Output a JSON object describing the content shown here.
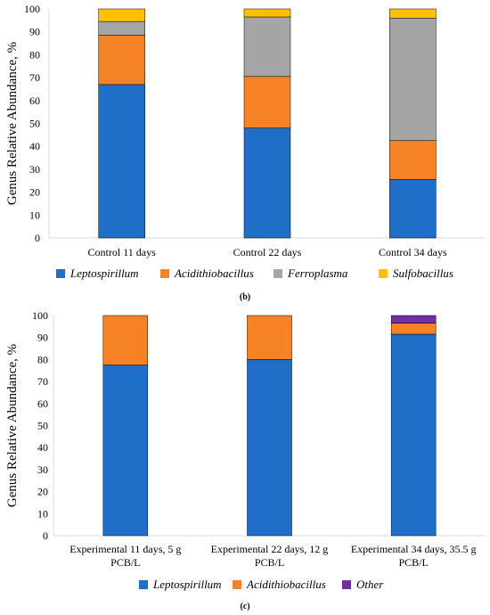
{
  "chart_data": [
    {
      "type": "bar",
      "stacked": true,
      "panel_label": "(b)",
      "ylabel": "Genus Relative Abundance, %",
      "ylim": [
        0,
        100
      ],
      "yticks": [
        0,
        10,
        20,
        30,
        40,
        50,
        60,
        70,
        80,
        90,
        100
      ],
      "grid": false,
      "legend_position": "bottom",
      "categories": [
        [
          "Control 11 days"
        ],
        [
          "Control 22 days"
        ],
        [
          "Control 34 days"
        ]
      ],
      "series": [
        {
          "name": "Leptospirillum",
          "color": "#1f6fc8",
          "values": [
            67,
            48,
            25.5
          ]
        },
        {
          "name": "Acidithiobacillus",
          "color": "#f58225",
          "values": [
            21.5,
            22.5,
            17
          ]
        },
        {
          "name": "Ferroplasma",
          "color": "#a5a5a5",
          "values": [
            6,
            26,
            53.5
          ]
        },
        {
          "name": "Sulfobacillus",
          "color": "#ffc000",
          "values": [
            5.5,
            3.5,
            4
          ]
        }
      ]
    },
    {
      "type": "bar",
      "stacked": true,
      "panel_label": "(c)",
      "ylabel": "Genus Relative Abundance, %",
      "ylim": [
        0,
        100
      ],
      "yticks": [
        0,
        10,
        20,
        30,
        40,
        50,
        60,
        70,
        80,
        90,
        100
      ],
      "grid": false,
      "legend_position": "bottom",
      "categories": [
        [
          "Experimental 11 days, 5 g",
          "PCB/L"
        ],
        [
          "Experimental 22 days, 12 g",
          "PCB/L"
        ],
        [
          "Experimental 34 days, 35.5 g",
          "PCB/L"
        ]
      ],
      "series": [
        {
          "name": "Leptospirillum",
          "color": "#1f6fc8",
          "values": [
            77.5,
            80,
            91.5
          ]
        },
        {
          "name": "Acidithiobacillus",
          "color": "#f58225",
          "values": [
            22.5,
            20,
            5
          ]
        },
        {
          "name": "Other",
          "color": "#7030a0",
          "values": [
            0,
            0,
            3.5
          ]
        }
      ]
    }
  ]
}
